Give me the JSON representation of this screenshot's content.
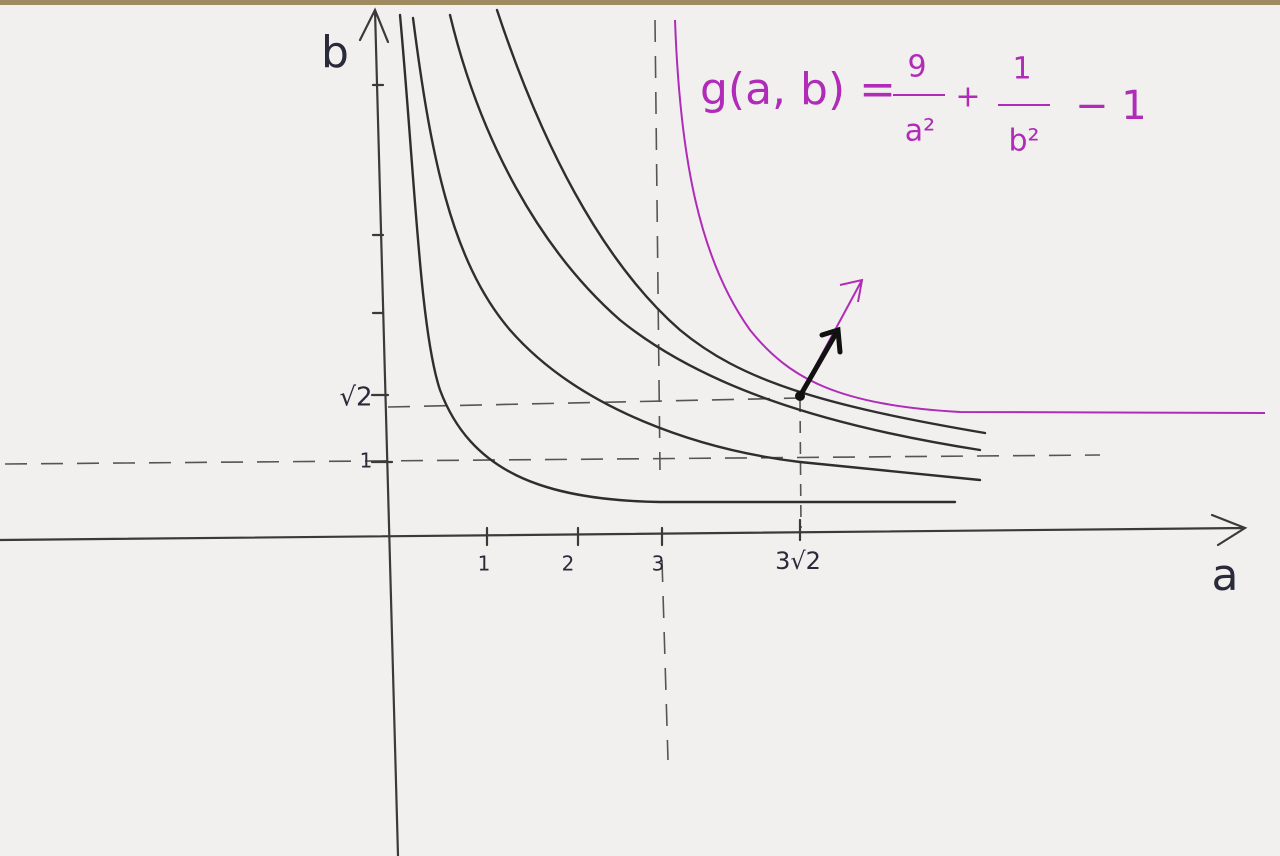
{
  "axes": {
    "x_label": "a",
    "y_label": "b",
    "x_ticks": [
      "1",
      "2",
      "3",
      "3√2"
    ],
    "y_ticks": [
      "1",
      "√2"
    ]
  },
  "formula": {
    "lhs": "g(a, b) =",
    "term1": {
      "num": "9",
      "den": "a²"
    },
    "op1": "+",
    "term2": {
      "num": "1",
      "den": "b²"
    },
    "tail": "− 1"
  }
}
